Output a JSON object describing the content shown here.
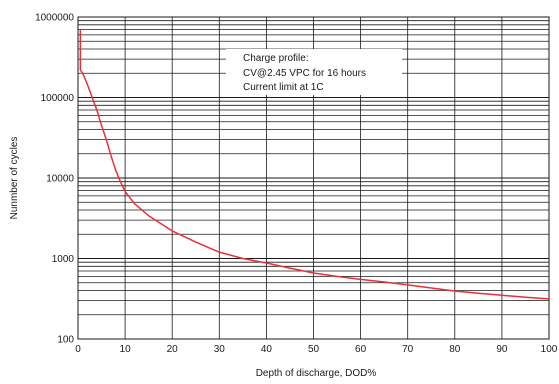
{
  "chart_data": {
    "type": "line",
    "title": "",
    "xlabel": "Depth of discharge, DOD%",
    "ylabel": "Nunmber of cycles",
    "xlim": [
      0,
      100
    ],
    "ylim": [
      100,
      1000000
    ],
    "yscale": "log",
    "grid": true,
    "x_ticks": [
      "0",
      "10",
      "20",
      "30",
      "40",
      "50",
      "60",
      "70",
      "80",
      "90",
      "100"
    ],
    "y_ticks": [
      "100",
      "1000",
      "10000",
      "100000",
      "1000000"
    ],
    "annotation": [
      "Charge profile:",
      "CV@2.45 VPC for 16 hours",
      "Current limit at 1C"
    ],
    "series": [
      {
        "color": "#e8303a",
        "x": [
          0.5,
          0.5,
          1,
          2,
          3,
          4,
          5,
          6,
          7,
          8,
          9,
          10,
          12,
          15,
          20,
          25,
          30,
          35,
          40,
          45,
          50,
          55,
          60,
          65,
          70,
          75,
          80,
          85,
          90,
          95,
          100
        ],
        "y": [
          700000,
          220000,
          200000,
          145000,
          100000,
          70000,
          45000,
          30000,
          19000,
          12500,
          9000,
          6800,
          4800,
          3400,
          2200,
          1600,
          1200,
          1000,
          880,
          760,
          660,
          600,
          550,
          510,
          470,
          430,
          395,
          370,
          350,
          330,
          315
        ]
      }
    ]
  }
}
